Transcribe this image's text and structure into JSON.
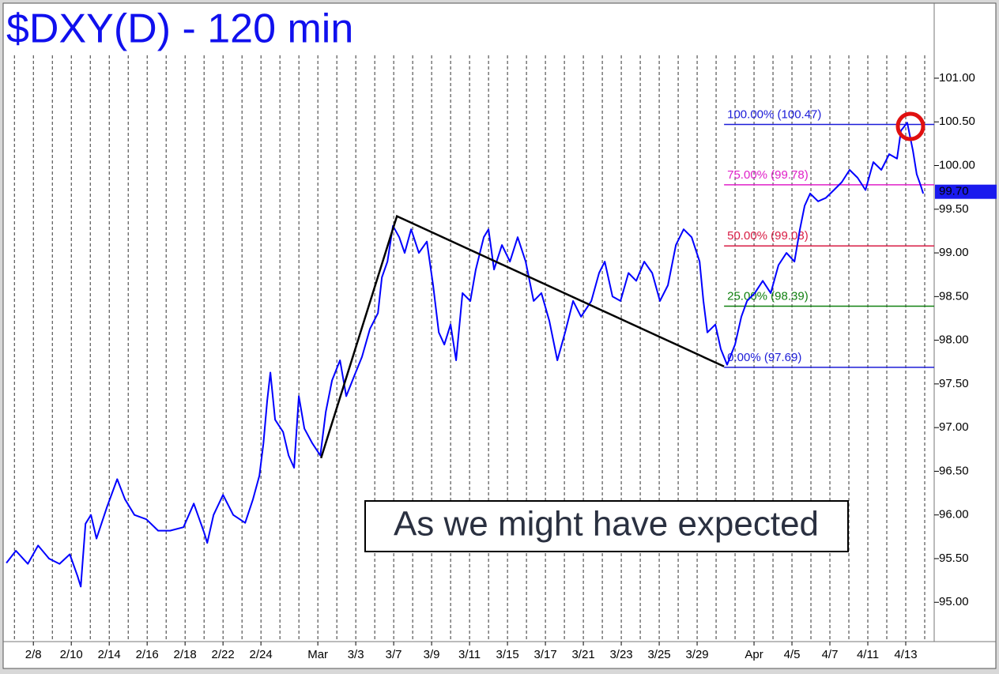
{
  "chart_data": {
    "type": "line",
    "title": "$DXY(D) - 120 min",
    "annotation": "As we might have expected",
    "color": "#0000ff",
    "x": [
      -0.42,
      0.08,
      0.71,
      1.25,
      1.83,
      2.38,
      2.92,
      3.33,
      3.5,
      3.75,
      4.04,
      4.33,
      4.88,
      5.42,
      5.83,
      6.33,
      6.96,
      7.58,
      8.21,
      8.92,
      9.46,
      10,
      10.17,
      10.5,
      11,
      11.54,
      12.17,
      12.58,
      12.92,
      13.13,
      13.33,
      13.5,
      13.75,
      14.17,
      14.46,
      14.75,
      15,
      15.29,
      15.71,
      16.13,
      16.42,
      16.75,
      17.17,
      17.5,
      17.92,
      18.33,
      18.75,
      19.17,
      19.38,
      19.67,
      19.96,
      20.29,
      20.58,
      20.92,
      21.33,
      21.75,
      22.08,
      22.38,
      22.67,
      23,
      23.29,
      23.63,
      24.04,
      24.33,
      24.75,
      25,
      25.29,
      25.71,
      26.13,
      26.54,
      26.96,
      27.38,
      27.79,
      28.21,
      28.63,
      29.04,
      29.46,
      29.88,
      30.42,
      30.83,
      31.13,
      31.54,
      31.96,
      32.38,
      32.79,
      33.21,
      33.63,
      34.04,
      34.46,
      34.88,
      35.29,
      35.71,
      36.13,
      36.33,
      36.54,
      36.96,
      37.25,
      37.58,
      38,
      38.33,
      38.63,
      39.04,
      39.46,
      39.88,
      40.29,
      40.71,
      41.13,
      41.42,
      41.67,
      41.96,
      42.38,
      42.79,
      43.21,
      43.63,
      44.04,
      44.46,
      44.88,
      45.29,
      45.71,
      46.13,
      46.54,
      46.75,
      47.08,
      47.38,
      47.58,
      47.79,
      47.92
    ],
    "values": [
      95.45,
      95.59,
      95.44,
      95.65,
      95.5,
      95.44,
      95.55,
      95.3,
      95.18,
      95.9,
      96.0,
      95.73,
      96.09,
      96.41,
      96.18,
      96.0,
      95.95,
      95.82,
      95.82,
      95.86,
      96.13,
      95.8,
      95.68,
      96.0,
      96.23,
      96.0,
      95.91,
      96.18,
      96.45,
      96.82,
      97.31,
      97.63,
      97.09,
      96.95,
      96.68,
      96.54,
      97.36,
      96.99,
      96.82,
      96.68,
      97.18,
      97.54,
      97.77,
      97.36,
      97.59,
      97.81,
      98.13,
      98.31,
      98.72,
      98.9,
      99.31,
      99.18,
      99.0,
      99.27,
      99.0,
      99.13,
      98.63,
      98.09,
      97.95,
      98.18,
      97.77,
      98.54,
      98.45,
      98.81,
      99.18,
      99.27,
      98.81,
      99.09,
      98.9,
      99.18,
      98.9,
      98.45,
      98.54,
      98.22,
      97.77,
      98.09,
      98.45,
      98.27,
      98.45,
      98.77,
      98.9,
      98.5,
      98.45,
      98.77,
      98.68,
      98.9,
      98.77,
      98.45,
      98.63,
      99.09,
      99.27,
      99.18,
      98.9,
      98.45,
      98.09,
      98.18,
      97.9,
      97.72,
      97.95,
      98.27,
      98.45,
      98.54,
      98.68,
      98.54,
      98.86,
      99.0,
      98.9,
      99.27,
      99.54,
      99.68,
      99.59,
      99.63,
      99.72,
      99.81,
      99.95,
      99.86,
      99.72,
      100.04,
      99.95,
      100.13,
      100.08,
      100.4,
      100.49,
      100.17,
      99.9,
      99.77,
      99.68
    ],
    "xlim": [
      -0.55,
      48.5
    ],
    "ylim": [
      94.55,
      101.85
    ],
    "xticks": [
      {
        "value": 1,
        "label": "2/8"
      },
      {
        "value": 3,
        "label": "2/10"
      },
      {
        "value": 5,
        "label": "2/14"
      },
      {
        "value": 7,
        "label": "2/16"
      },
      {
        "value": 9,
        "label": "2/18"
      },
      {
        "value": 11,
        "label": "2/22"
      },
      {
        "value": 13,
        "label": "2/24"
      },
      {
        "value": 16,
        "label": "Mar"
      },
      {
        "value": 18,
        "label": "3/3"
      },
      {
        "value": 20,
        "label": "3/7"
      },
      {
        "value": 22,
        "label": "3/9"
      },
      {
        "value": 24,
        "label": "3/11"
      },
      {
        "value": 26,
        "label": "3/15"
      },
      {
        "value": 28,
        "label": "3/17"
      },
      {
        "value": 30,
        "label": "3/21"
      },
      {
        "value": 32,
        "label": "3/23"
      },
      {
        "value": 34,
        "label": "3/25"
      },
      {
        "value": 36,
        "label": "3/29"
      },
      {
        "value": 39,
        "label": "Apr"
      },
      {
        "value": 41,
        "label": "4/5"
      },
      {
        "value": 43,
        "label": "4/7"
      },
      {
        "value": 45,
        "label": "4/11"
      },
      {
        "value": 47,
        "label": "4/13"
      }
    ],
    "day_grid": [
      0,
      1,
      2,
      3,
      4,
      5,
      6,
      7,
      8,
      9,
      10,
      11,
      12,
      13,
      14,
      15,
      16,
      17,
      18,
      19,
      20,
      21,
      22,
      23,
      24,
      25,
      26,
      27,
      28,
      29,
      30,
      31,
      32,
      33,
      34,
      35,
      36,
      37,
      38,
      39,
      40,
      41,
      42,
      43,
      44,
      45,
      46,
      47,
      48
    ],
    "yticks": [
      {
        "value": 95,
        "label": "95.00"
      },
      {
        "value": 95.5,
        "label": "95.50"
      },
      {
        "value": 96,
        "label": "96.00"
      },
      {
        "value": 96.5,
        "label": "96.50"
      },
      {
        "value": 97,
        "label": "97.00"
      },
      {
        "value": 97.5,
        "label": "97.50"
      },
      {
        "value": 98,
        "label": "98.00"
      },
      {
        "value": 98.5,
        "label": "98.50"
      },
      {
        "value": 99,
        "label": "99.00"
      },
      {
        "value": 99.5,
        "label": "99.50"
      },
      {
        "value": 100,
        "label": "100.00"
      },
      {
        "value": 100.5,
        "label": "100.50"
      },
      {
        "value": 101,
        "label": "101.00"
      }
    ],
    "last_price": {
      "value": 99.7,
      "label": "99.70"
    },
    "fib_start": 37.42,
    "fib_levels": [
      {
        "label": "100.00% (100.47)",
        "value": 100.47,
        "color": "#1c1cd8"
      },
      {
        "label": "75.00% (99.78)",
        "value": 99.78,
        "color": "#e020c8"
      },
      {
        "label": "50.00% (99.08)",
        "value": 99.08,
        "color": "#d81c44"
      },
      {
        "label": "25.00% (98.39)",
        "value": 98.39,
        "color": "#108010"
      },
      {
        "label": "0.00% (97.69)",
        "value": 97.69,
        "color": "#1c1cd8"
      }
    ],
    "trendline": {
      "x": [
        16.17,
        20.17,
        37.42
      ],
      "values": [
        96.65,
        99.42,
        97.7
      ]
    }
  }
}
